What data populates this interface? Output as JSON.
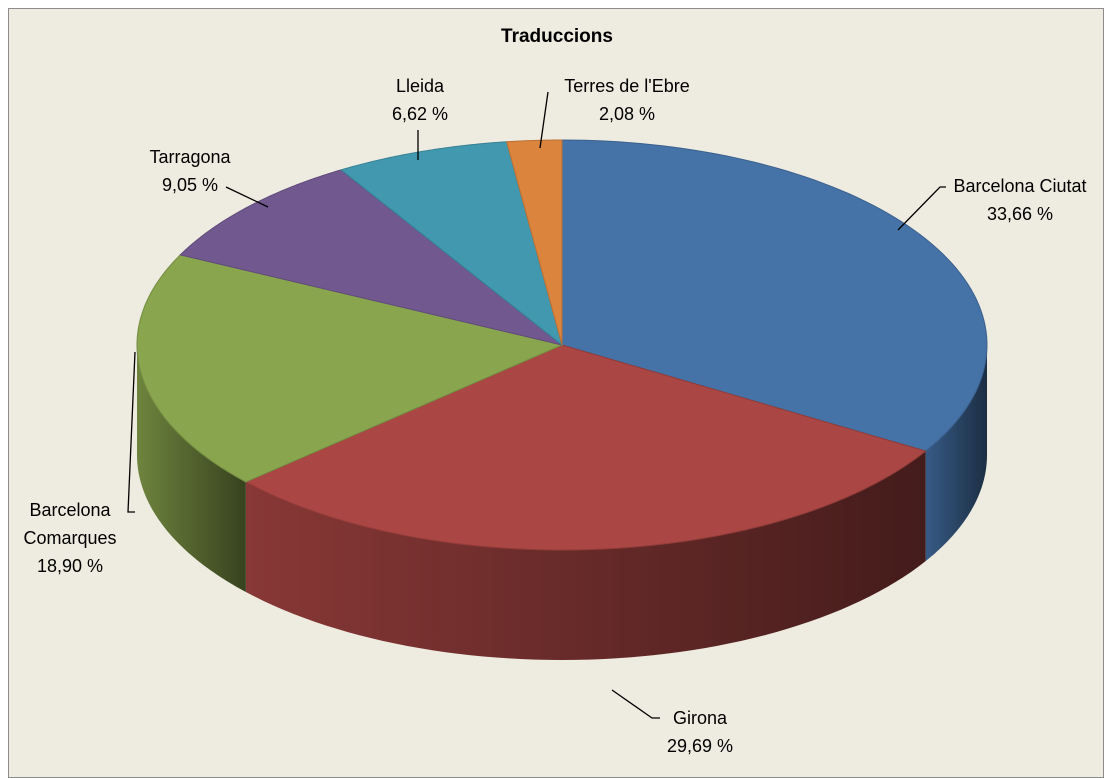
{
  "chart_data": {
    "type": "pie",
    "title": "Traduccions",
    "categories": [
      "Barcelona Ciutat",
      "Girona",
      "Barcelona Comarques",
      "Tarragona",
      "Lleida",
      "Terres de l'Ebre"
    ],
    "values": [
      33.66,
      29.69,
      18.9,
      9.05,
      6.62,
      2.08
    ],
    "value_labels": [
      "33,66 %",
      "29,69 %",
      "18,90 %",
      "9,05 %",
      "6,62 %",
      "2,08 %"
    ],
    "colors": [
      "#4572a7",
      "#aa4643",
      "#89a54e",
      "#71588f",
      "#4198af",
      "#db843d"
    ]
  }
}
